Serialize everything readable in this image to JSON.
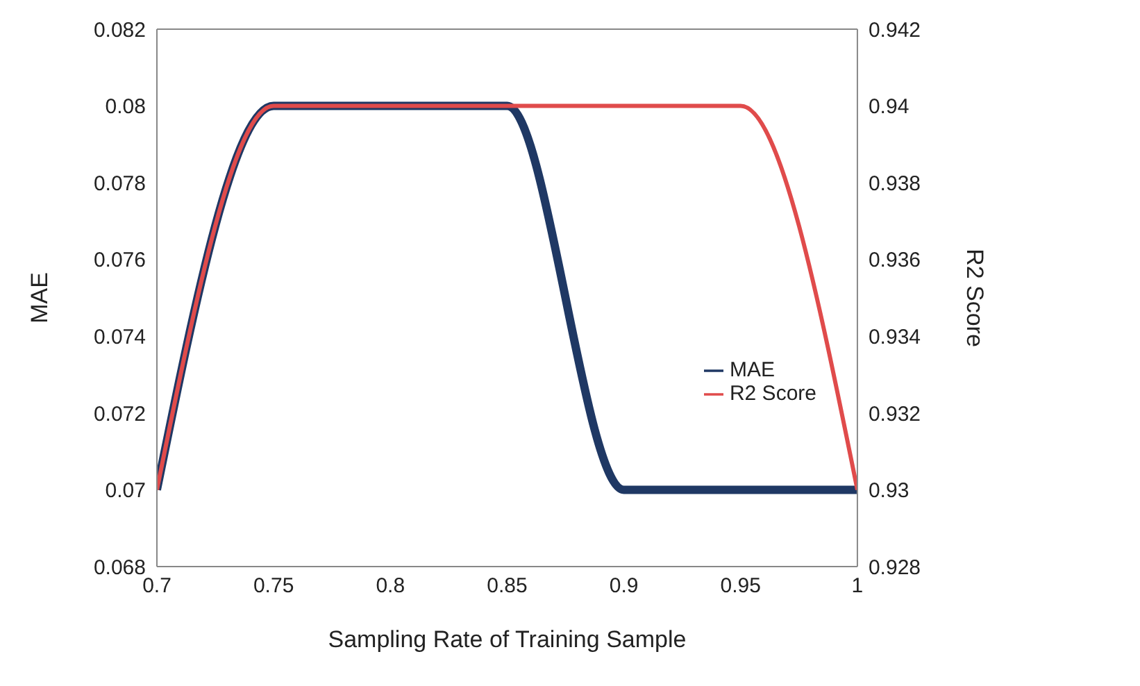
{
  "chart_data": {
    "type": "line",
    "xlabel": "Sampling Rate of Training Sample",
    "ylabel": "MAE",
    "y2label": "R2 Score",
    "x": [
      0.7,
      0.75,
      0.8,
      0.85,
      0.9,
      0.95,
      1
    ],
    "series": [
      {
        "name": "MAE",
        "color": "#1f3864",
        "values": [
          0.07,
          0.08,
          0.08,
          0.08,
          0.07,
          0.07,
          0.07
        ]
      },
      {
        "name": "R2 Score",
        "color": "#e04b4b",
        "axis": "y2",
        "values": [
          0.93,
          0.94,
          0.94,
          0.94,
          0.94,
          0.94,
          0.93
        ]
      }
    ],
    "xlim": [
      0.7,
      1
    ],
    "xticks": [
      0.7,
      0.75,
      0.8,
      0.85,
      0.9,
      0.95,
      1
    ],
    "ylim": [
      0.068,
      0.082
    ],
    "yticks": [
      0.068,
      0.07,
      0.072,
      0.074,
      0.076,
      0.078,
      0.08,
      0.082
    ],
    "y2lim": [
      0.928,
      0.942
    ],
    "y2ticks": [
      0.928,
      0.93,
      0.932,
      0.934,
      0.936,
      0.938,
      0.94,
      0.942
    ],
    "grid": false,
    "legend": "right",
    "marker": "none",
    "line_style": "solid"
  }
}
